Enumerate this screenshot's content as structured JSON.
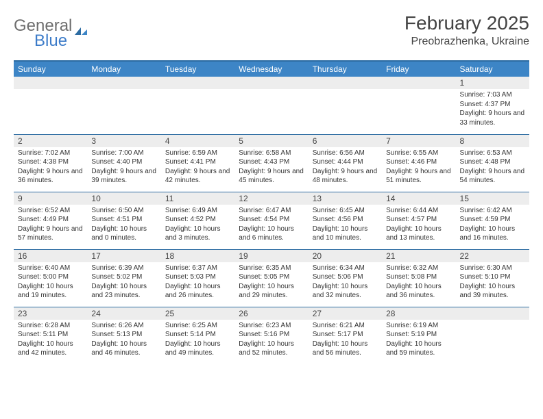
{
  "brand": {
    "text_a": "General",
    "text_b": "Blue"
  },
  "title": "February 2025",
  "location": "Preobrazhenka, Ukraine",
  "colors": {
    "header_bg": "#3d85c6",
    "rule": "#2d6ca2",
    "daynum_bg": "#ededed",
    "text": "#333333",
    "brand_gray": "#6e6e6e",
    "brand_blue": "#3d7cc9"
  },
  "weekdays": [
    "Sunday",
    "Monday",
    "Tuesday",
    "Wednesday",
    "Thursday",
    "Friday",
    "Saturday"
  ],
  "weeks": [
    [
      null,
      null,
      null,
      null,
      null,
      null,
      {
        "n": "1",
        "sr": "7:03 AM",
        "ss": "4:37 PM",
        "dl": "9 hours and 33 minutes."
      }
    ],
    [
      {
        "n": "2",
        "sr": "7:02 AM",
        "ss": "4:38 PM",
        "dl": "9 hours and 36 minutes."
      },
      {
        "n": "3",
        "sr": "7:00 AM",
        "ss": "4:40 PM",
        "dl": "9 hours and 39 minutes."
      },
      {
        "n": "4",
        "sr": "6:59 AM",
        "ss": "4:41 PM",
        "dl": "9 hours and 42 minutes."
      },
      {
        "n": "5",
        "sr": "6:58 AM",
        "ss": "4:43 PM",
        "dl": "9 hours and 45 minutes."
      },
      {
        "n": "6",
        "sr": "6:56 AM",
        "ss": "4:44 PM",
        "dl": "9 hours and 48 minutes."
      },
      {
        "n": "7",
        "sr": "6:55 AM",
        "ss": "4:46 PM",
        "dl": "9 hours and 51 minutes."
      },
      {
        "n": "8",
        "sr": "6:53 AM",
        "ss": "4:48 PM",
        "dl": "9 hours and 54 minutes."
      }
    ],
    [
      {
        "n": "9",
        "sr": "6:52 AM",
        "ss": "4:49 PM",
        "dl": "9 hours and 57 minutes."
      },
      {
        "n": "10",
        "sr": "6:50 AM",
        "ss": "4:51 PM",
        "dl": "10 hours and 0 minutes."
      },
      {
        "n": "11",
        "sr": "6:49 AM",
        "ss": "4:52 PM",
        "dl": "10 hours and 3 minutes."
      },
      {
        "n": "12",
        "sr": "6:47 AM",
        "ss": "4:54 PM",
        "dl": "10 hours and 6 minutes."
      },
      {
        "n": "13",
        "sr": "6:45 AM",
        "ss": "4:56 PM",
        "dl": "10 hours and 10 minutes."
      },
      {
        "n": "14",
        "sr": "6:44 AM",
        "ss": "4:57 PM",
        "dl": "10 hours and 13 minutes."
      },
      {
        "n": "15",
        "sr": "6:42 AM",
        "ss": "4:59 PM",
        "dl": "10 hours and 16 minutes."
      }
    ],
    [
      {
        "n": "16",
        "sr": "6:40 AM",
        "ss": "5:00 PM",
        "dl": "10 hours and 19 minutes."
      },
      {
        "n": "17",
        "sr": "6:39 AM",
        "ss": "5:02 PM",
        "dl": "10 hours and 23 minutes."
      },
      {
        "n": "18",
        "sr": "6:37 AM",
        "ss": "5:03 PM",
        "dl": "10 hours and 26 minutes."
      },
      {
        "n": "19",
        "sr": "6:35 AM",
        "ss": "5:05 PM",
        "dl": "10 hours and 29 minutes."
      },
      {
        "n": "20",
        "sr": "6:34 AM",
        "ss": "5:06 PM",
        "dl": "10 hours and 32 minutes."
      },
      {
        "n": "21",
        "sr": "6:32 AM",
        "ss": "5:08 PM",
        "dl": "10 hours and 36 minutes."
      },
      {
        "n": "22",
        "sr": "6:30 AM",
        "ss": "5:10 PM",
        "dl": "10 hours and 39 minutes."
      }
    ],
    [
      {
        "n": "23",
        "sr": "6:28 AM",
        "ss": "5:11 PM",
        "dl": "10 hours and 42 minutes."
      },
      {
        "n": "24",
        "sr": "6:26 AM",
        "ss": "5:13 PM",
        "dl": "10 hours and 46 minutes."
      },
      {
        "n": "25",
        "sr": "6:25 AM",
        "ss": "5:14 PM",
        "dl": "10 hours and 49 minutes."
      },
      {
        "n": "26",
        "sr": "6:23 AM",
        "ss": "5:16 PM",
        "dl": "10 hours and 52 minutes."
      },
      {
        "n": "27",
        "sr": "6:21 AM",
        "ss": "5:17 PM",
        "dl": "10 hours and 56 minutes."
      },
      {
        "n": "28",
        "sr": "6:19 AM",
        "ss": "5:19 PM",
        "dl": "10 hours and 59 minutes."
      },
      null
    ]
  ],
  "labels": {
    "sunrise": "Sunrise: ",
    "sunset": "Sunset: ",
    "daylight": "Daylight: "
  }
}
